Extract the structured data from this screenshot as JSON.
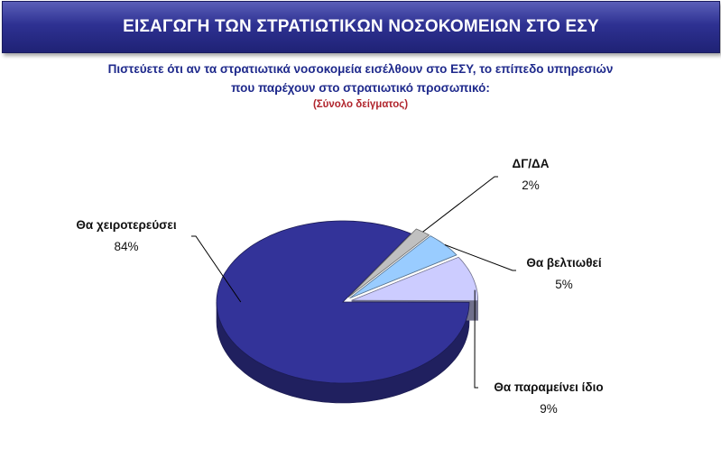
{
  "header": {
    "title": "ΕΙΣΑΓΩΓΗ ΤΩΝ ΣΤΡΑΤΙΩΤΙΚΩΝ ΝΟΣΟΚΟΜΕΙΩΝ ΣΤΟ ΕΣΥ"
  },
  "question": {
    "line1": "Πιστεύετε ότι αν τα στρατιωτικά νοσοκομεία εισέλθουν στο ΕΣΥ, το επίπεδο υπηρεσιών",
    "line2": "που παρέχουν στο στρατιωτικό προσωπικό:",
    "sample": "(Σύνολο δείγματος)"
  },
  "chart_data": {
    "type": "pie",
    "three_d": true,
    "title": "",
    "slices": [
      {
        "label": "Θα χειροτερεύσει",
        "value": 84,
        "value_label": "84%",
        "color": "#333399"
      },
      {
        "label": "ΔΓ/ΔΑ",
        "value": 2,
        "value_label": "2%",
        "color": "#c0c0c0"
      },
      {
        "label": "Θα βελτιωθεί",
        "value": 5,
        "value_label": "5%",
        "color": "#99ccff"
      },
      {
        "label": "Θα παραμείνει ίδιο",
        "value": 9,
        "value_label": "9%",
        "color": "#ccccff"
      }
    ]
  }
}
